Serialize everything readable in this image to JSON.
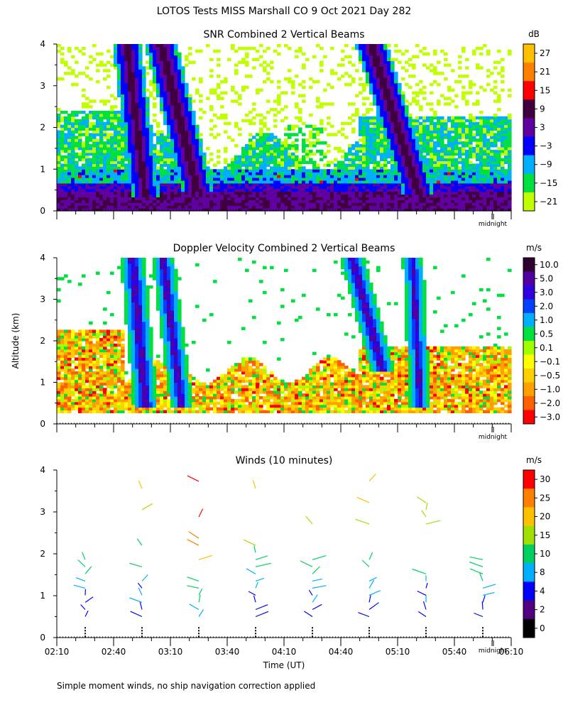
{
  "title": "LOTOS Tests MISS Marshall CO   9 Oct 2021 Day 282",
  "ylabel": "Altitude (km)",
  "xlabel": "Time (UT)",
  "footnote": "Simple moment winds, no ship navigation correction applied",
  "midnight_label": "midnight",
  "chart_data": [
    {
      "type": "heatmap",
      "title": "SNR Combined 2 Vertical Beams",
      "unit": "dB",
      "ylim": [
        0,
        4
      ],
      "yticks": [
        "0",
        "1",
        "2",
        "3",
        "4"
      ],
      "colorbar": {
        "labels": [
          "27",
          "21",
          "15",
          "9",
          "3",
          "−3",
          "−9",
          "−15",
          "−21"
        ],
        "colors": [
          "#ffc000",
          "#ff8000",
          "#ff0000",
          "#400040",
          "#6000a0",
          "#0000ff",
          "#00b0ff",
          "#00e040",
          "#c0ff00"
        ]
      }
    },
    {
      "type": "heatmap",
      "title": "Doppler Velocity Combined 2 Vertical Beams",
      "unit": "m/s",
      "ylim": [
        0,
        4
      ],
      "yticks": [
        "0",
        "1",
        "2",
        "3",
        "4"
      ],
      "colorbar": {
        "labels": [
          "10.0",
          "5.0",
          "3.0",
          "2.0",
          "1.0",
          "0.5",
          "0.1",
          "−0.1",
          "−0.5",
          "−1.0",
          "−2.0",
          "−3.0"
        ],
        "colors": [
          "#300030",
          "#5000a0",
          "#3000e0",
          "#0040ff",
          "#00b0ff",
          "#00e040",
          "#a0ff00",
          "#ffff00",
          "#ffd000",
          "#ffa000",
          "#ff6000",
          "#ff0000"
        ]
      }
    },
    {
      "type": "wind-barbs",
      "title": "Winds (10 minutes)",
      "unit": "m/s",
      "ylim": [
        0,
        4
      ],
      "yticks": [
        "0",
        "1",
        "2",
        "3",
        "4"
      ],
      "x_ticks": [
        "02:10",
        "02:40",
        "03:10",
        "03:40",
        "04:10",
        "04:40",
        "05:10",
        "05:40",
        "06:10"
      ],
      "profile_times": [
        "02:25",
        "02:55",
        "03:25",
        "03:55",
        "04:25",
        "04:55",
        "05:25",
        "05:55"
      ],
      "colorbar": {
        "labels": [
          "30",
          "25",
          "20",
          "15",
          "10",
          "8",
          "4",
          "2",
          "0"
        ],
        "colors": [
          "#ff0000",
          "#ff8000",
          "#ffc000",
          "#a0e000",
          "#00d060",
          "#00b0ff",
          "#0000ff",
          "#500080",
          "#000000"
        ]
      }
    }
  ]
}
